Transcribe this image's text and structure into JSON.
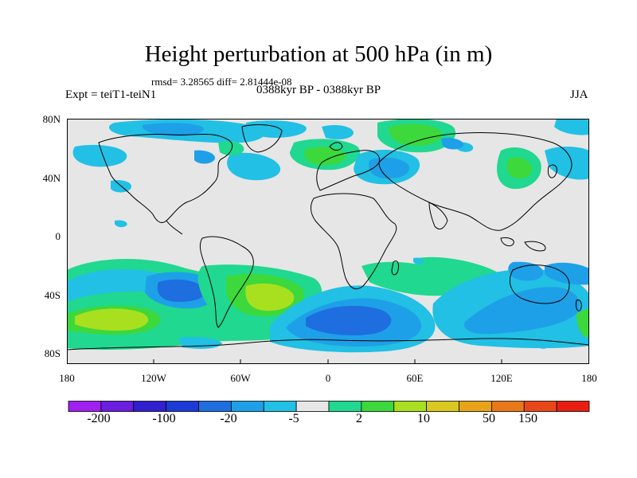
{
  "title": "Height perturbation at 500 hPa (in m)",
  "stats": "rmsd= 3.28565 diff= 2.81444e-08",
  "experiment": "Expt = teiT1-teiN1",
  "period": "0388kyr BP - 0388kyr BP",
  "season": "JJA",
  "lat_labels": [
    "80N",
    "40N",
    "0",
    "40S",
    "80S"
  ],
  "lon_labels": [
    "180",
    "120W",
    "60W",
    "0",
    "60E",
    "120E",
    "180"
  ],
  "colorbar": {
    "colors": [
      "#a020f0",
      "#6a1ee0",
      "#3020d0",
      "#1c3ad8",
      "#1e6ee0",
      "#1ea0e8",
      "#22c0e4",
      "#e6e6e6",
      "#20d890",
      "#3cd83c",
      "#a8e020",
      "#d8c820",
      "#e8a418",
      "#e87818",
      "#e84818",
      "#e81e10"
    ],
    "labels": [
      "-200",
      "-100",
      "-20",
      "-5",
      "2",
      "10",
      "50",
      "150"
    ]
  }
}
